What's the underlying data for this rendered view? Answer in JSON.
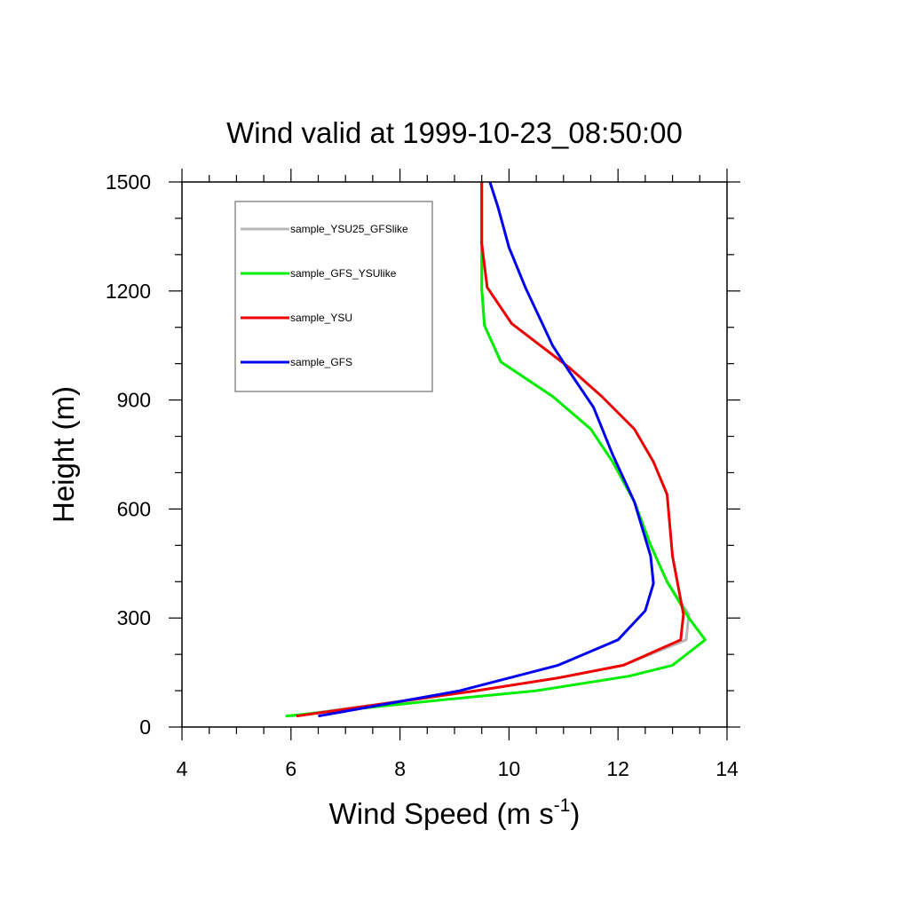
{
  "chart_data": {
    "type": "line",
    "title": "Wind valid at 1999-10-23_08:50:00",
    "xlabel": "Wind Speed (m s",
    "xlabel_sup": "-1",
    "xlabel_end": ")",
    "ylabel": "Height (m)",
    "xlim": [
      4,
      14
    ],
    "ylim": [
      0,
      1500
    ],
    "xticks": [
      "4",
      "6",
      "8",
      "10",
      "12",
      "14"
    ],
    "yticks": [
      "0",
      "300",
      "600",
      "900",
      "1200",
      "1500"
    ],
    "grid": false,
    "legend_position": "top-left",
    "series": [
      {
        "name": "sample_YSU25_GFSlike",
        "color": "#b8b8b8",
        "points": [
          [
            6.0,
            30
          ],
          [
            9.4,
            100
          ],
          [
            10.9,
            135
          ],
          [
            12.1,
            170
          ],
          [
            13.25,
            240
          ],
          [
            13.3,
            310
          ],
          [
            12.9,
            400
          ],
          [
            12.6,
            500
          ],
          [
            12.3,
            620
          ],
          [
            11.9,
            730
          ],
          [
            11.5,
            820
          ],
          [
            10.8,
            910
          ],
          [
            9.85,
            1005
          ],
          [
            9.55,
            1105
          ],
          [
            9.5,
            1205
          ],
          [
            9.5,
            1330
          ],
          [
            9.5,
            1500
          ]
        ]
      },
      {
        "name": "sample_GFS_YSUlike",
        "color": "#00ee00",
        "points": [
          [
            5.9,
            30
          ],
          [
            8.8,
            75
          ],
          [
            10.5,
            100
          ],
          [
            12.2,
            140
          ],
          [
            13.0,
            170
          ],
          [
            13.6,
            240
          ],
          [
            13.3,
            300
          ],
          [
            12.9,
            400
          ],
          [
            12.6,
            500
          ],
          [
            12.3,
            620
          ],
          [
            11.9,
            730
          ],
          [
            11.5,
            820
          ],
          [
            10.8,
            910
          ],
          [
            9.85,
            1005
          ],
          [
            9.55,
            1105
          ],
          [
            9.5,
            1205
          ],
          [
            9.5,
            1330
          ],
          [
            9.5,
            1500
          ]
        ]
      },
      {
        "name": "sample_YSU",
        "color": "#ee0000",
        "points": [
          [
            6.1,
            30
          ],
          [
            9.4,
            100
          ],
          [
            10.9,
            135
          ],
          [
            12.1,
            170
          ],
          [
            13.15,
            240
          ],
          [
            13.2,
            310
          ],
          [
            13.0,
            470
          ],
          [
            12.9,
            640
          ],
          [
            12.65,
            730
          ],
          [
            12.3,
            820
          ],
          [
            11.7,
            910
          ],
          [
            11.1,
            990
          ],
          [
            10.05,
            1110
          ],
          [
            9.6,
            1210
          ],
          [
            9.5,
            1330
          ],
          [
            9.5,
            1500
          ]
        ]
      },
      {
        "name": "sample_GFS",
        "color": "#0000ee",
        "points": [
          [
            6.5,
            30
          ],
          [
            9.1,
            100
          ],
          [
            10.9,
            170
          ],
          [
            12.0,
            240
          ],
          [
            12.5,
            320
          ],
          [
            12.65,
            395
          ],
          [
            12.6,
            470
          ],
          [
            12.3,
            620
          ],
          [
            11.9,
            750
          ],
          [
            11.55,
            880
          ],
          [
            11.1,
            980
          ],
          [
            10.8,
            1050
          ],
          [
            10.3,
            1210
          ],
          [
            10.0,
            1320
          ],
          [
            9.8,
            1430
          ],
          [
            9.65,
            1500
          ]
        ]
      }
    ]
  }
}
